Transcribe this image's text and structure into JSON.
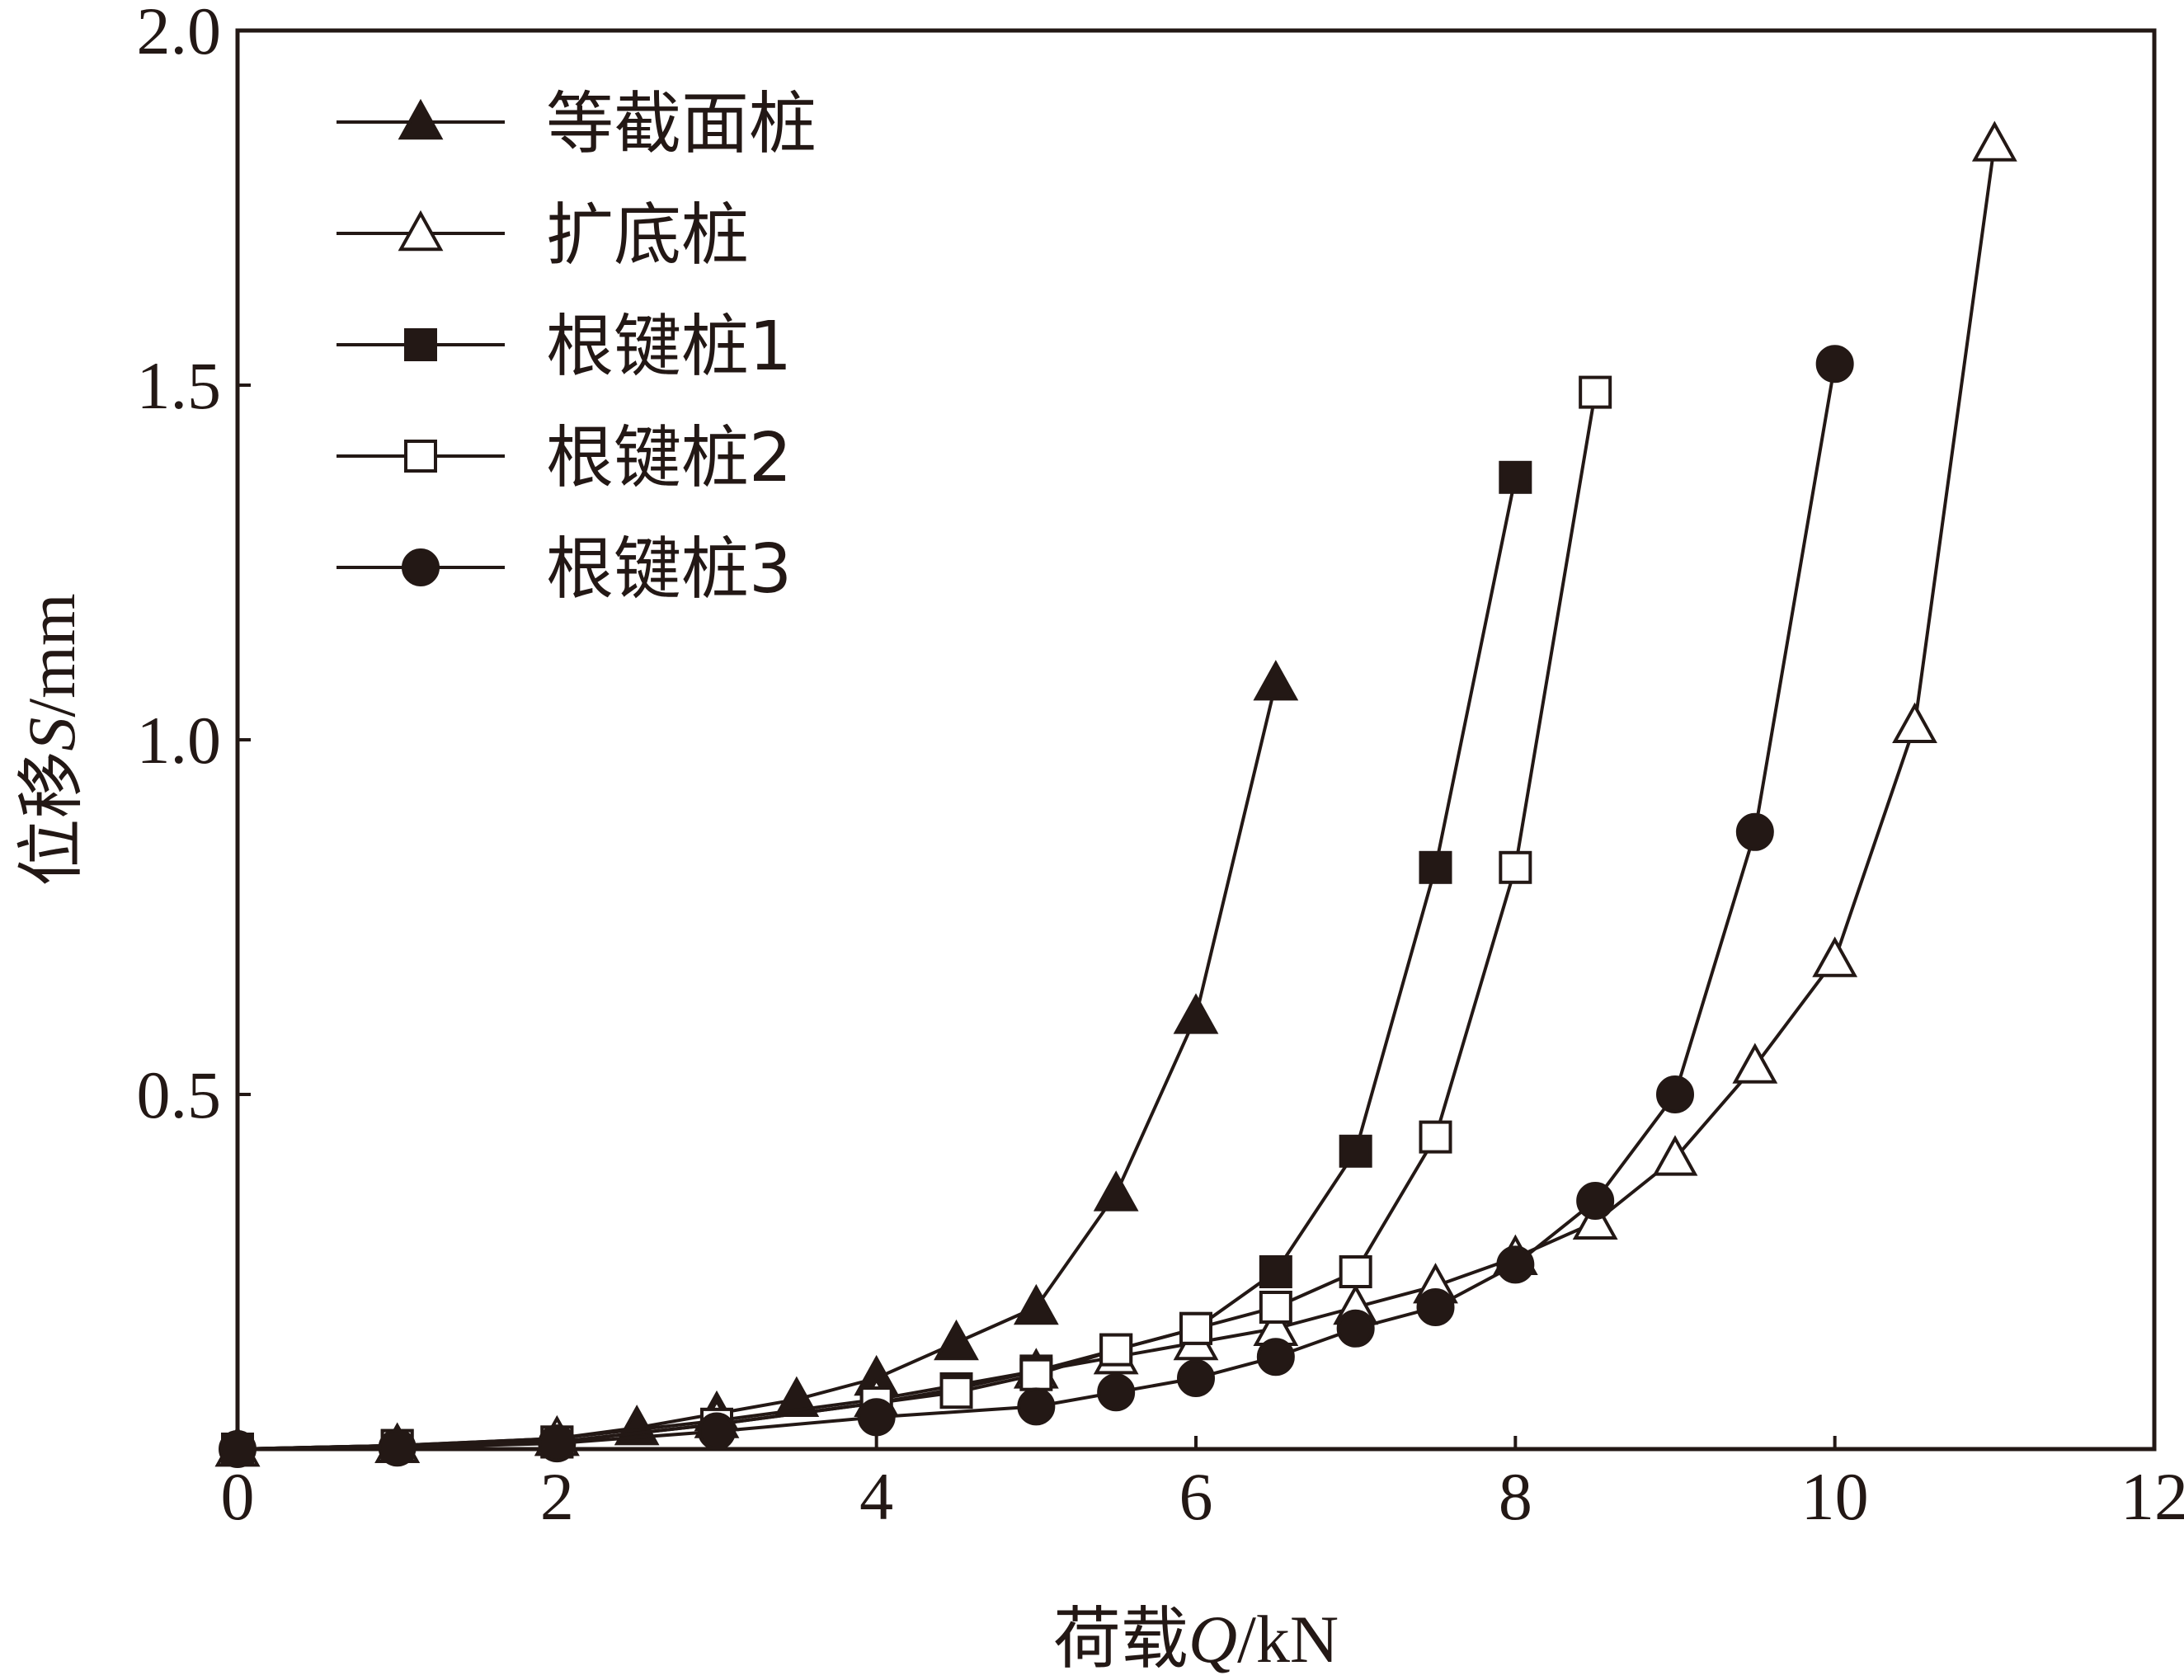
{
  "chart_data": {
    "type": "line",
    "title": "",
    "xlabel": {
      "prefix": "荷载",
      "var": "Q",
      "unit": "/kN"
    },
    "ylabel": {
      "prefix": "位移",
      "var": "S",
      "unit": "/mm"
    },
    "xlim": [
      0,
      12
    ],
    "ylim": [
      0,
      2.0
    ],
    "xticks": [
      "0",
      "2",
      "4",
      "6",
      "8",
      "10",
      "12"
    ],
    "yticks": [
      "0.5",
      "1.0",
      "1.5",
      "2.0"
    ],
    "ytick_values": [
      0.5,
      1.0,
      1.5,
      2.0
    ],
    "grid": false,
    "legend_position": "top-left",
    "series": [
      {
        "name": "等截面桩",
        "marker": "triangle-filled",
        "x": [
          0,
          1,
          2,
          2.5,
          3,
          3.5,
          4,
          4.5,
          5,
          5.5,
          6,
          6.5
        ],
        "y": [
          0.0,
          0.005,
          0.015,
          0.03,
          0.05,
          0.07,
          0.1,
          0.15,
          0.2,
          0.36,
          0.61,
          1.08
        ]
      },
      {
        "name": "扩底桩",
        "marker": "triangle-open",
        "x": [
          0,
          1,
          2,
          3,
          4,
          5,
          5.5,
          6,
          6.5,
          7,
          7.5,
          8,
          8.5,
          9,
          9.5,
          10,
          10.5,
          11
        ],
        "y": [
          0.0,
          0.005,
          0.015,
          0.04,
          0.07,
          0.11,
          0.13,
          0.15,
          0.17,
          0.2,
          0.23,
          0.27,
          0.32,
          0.41,
          0.54,
          0.69,
          1.02,
          1.84
        ]
      },
      {
        "name": "根键桩1",
        "marker": "square-filled",
        "x": [
          0,
          1,
          2,
          3,
          4,
          4.5,
          5,
          5.5,
          6,
          6.5,
          7,
          7.5,
          8
        ],
        "y": [
          0.0,
          0.005,
          0.01,
          0.035,
          0.065,
          0.085,
          0.11,
          0.14,
          0.17,
          0.25,
          0.42,
          0.82,
          1.37
        ]
      },
      {
        "name": "根键桩2",
        "marker": "square-open",
        "x": [
          0,
          1,
          2,
          3,
          4,
          4.5,
          5,
          5.5,
          6,
          6.5,
          7,
          7.5,
          8,
          8.5
        ],
        "y": [
          0.0,
          0.005,
          0.01,
          0.035,
          0.065,
          0.08,
          0.105,
          0.14,
          0.17,
          0.2,
          0.25,
          0.44,
          0.82,
          1.49
        ]
      },
      {
        "name": "根键桩3",
        "marker": "circle-filled",
        "x": [
          0,
          1,
          2,
          3,
          4,
          5,
          5.5,
          6,
          6.5,
          7,
          7.5,
          8,
          8.5,
          9,
          9.5,
          10
        ],
        "y": [
          0.0,
          0.002,
          0.008,
          0.025,
          0.045,
          0.06,
          0.08,
          0.1,
          0.13,
          0.17,
          0.2,
          0.26,
          0.35,
          0.5,
          0.87,
          1.53
        ]
      }
    ]
  }
}
